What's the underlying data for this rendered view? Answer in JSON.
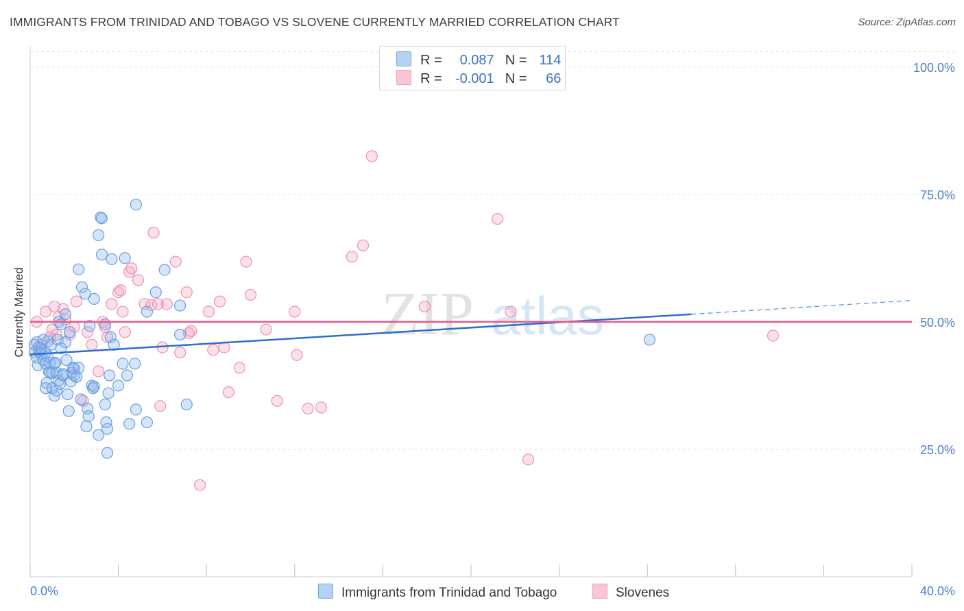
{
  "title": "IMMIGRANTS FROM TRINIDAD AND TOBAGO VS SLOVENE CURRENTLY MARRIED CORRELATION CHART",
  "source": "Source: ZipAtlas.com",
  "watermark": {
    "zip": "ZIP",
    "atlas": "atlas"
  },
  "legend": {
    "rows": [
      {
        "r_label": "R =",
        "r_value": "0.087",
        "n_label": "N =",
        "n_value": "114",
        "color": "#a9c8f0"
      },
      {
        "r_label": "R =",
        "r_value": "-0.001",
        "n_label": "N =",
        "n_value": "66",
        "color": "#f5b8cb"
      }
    ]
  },
  "bottom_legend": {
    "series1": "Immigrants from Trinidad and Tobago",
    "series2": "Slovenes"
  },
  "colors": {
    "blue_fill": "rgba(140,180,235,0.35)",
    "blue_stroke": "#6a9ee0",
    "blue_line": "#2a6fce",
    "pink_fill": "rgba(245,170,195,0.35)",
    "pink_stroke": "#ee90b0",
    "pink_line": "#e8588c",
    "axis_text": "#4a80c8"
  },
  "chart_data": {
    "type": "scatter",
    "title": "IMMIGRANTS FROM TRINIDAD AND TOBAGO VS SLOVENE CURRENTLY MARRIED CORRELATION CHART",
    "ylabel": "Currently Married",
    "xlabel": "",
    "xlim": [
      0,
      40
    ],
    "ylim": [
      0,
      104
    ],
    "x_tick_labels": [
      "0.0%",
      "40.0%"
    ],
    "y_ticks": [
      25,
      50,
      75,
      100
    ],
    "y_tick_labels": [
      "25.0%",
      "50.0%",
      "75.0%",
      "100.0%"
    ],
    "grid": "horizontal dashed",
    "legend_position": "top-center",
    "series": [
      {
        "name": "Immigrants from Trinidad and Tobago",
        "trend": {
          "x": [
            0,
            30
          ],
          "y": [
            43.6,
            51.5
          ],
          "extended_to": [
            40,
            54.2
          ]
        },
        "points": [
          [
            0.2,
            45.5
          ],
          [
            0.2,
            44.0
          ],
          [
            0.3,
            46.0
          ],
          [
            0.3,
            43.0
          ],
          [
            0.35,
            41.5
          ],
          [
            0.4,
            45.0
          ],
          [
            0.4,
            44.2
          ],
          [
            0.5,
            44.8
          ],
          [
            0.5,
            43.8
          ],
          [
            0.6,
            46.5
          ],
          [
            0.6,
            42.5
          ],
          [
            0.7,
            44.0
          ],
          [
            0.7,
            41.8
          ],
          [
            0.7,
            37.0
          ],
          [
            0.75,
            38.0
          ],
          [
            0.8,
            46.2
          ],
          [
            0.8,
            43.2
          ],
          [
            0.85,
            40.2
          ],
          [
            0.9,
            40.0
          ],
          [
            0.9,
            42.0
          ],
          [
            0.95,
            45.5
          ],
          [
            1.0,
            40.0
          ],
          [
            1.0,
            37.0
          ],
          [
            1.1,
            41.8
          ],
          [
            1.1,
            35.5
          ],
          [
            1.15,
            42.0
          ],
          [
            1.2,
            40.0
          ],
          [
            1.2,
            36.5
          ],
          [
            1.25,
            46.5
          ],
          [
            1.3,
            38.5
          ],
          [
            1.3,
            50.0
          ],
          [
            1.35,
            37.8
          ],
          [
            1.4,
            49.5
          ],
          [
            1.4,
            44.8
          ],
          [
            1.5,
            39.8
          ],
          [
            1.5,
            39.5
          ],
          [
            1.6,
            51.5
          ],
          [
            1.6,
            46.0
          ],
          [
            1.65,
            42.5
          ],
          [
            1.7,
            35.8
          ],
          [
            1.75,
            32.5
          ],
          [
            1.8,
            48.0
          ],
          [
            1.85,
            38.3
          ],
          [
            1.9,
            40.0
          ],
          [
            1.95,
            41.0
          ],
          [
            2.0,
            39.5
          ],
          [
            2.0,
            40.8
          ],
          [
            2.1,
            39.2
          ],
          [
            2.2,
            41.0
          ],
          [
            2.2,
            60.3
          ],
          [
            2.3,
            34.8
          ],
          [
            2.35,
            56.8
          ],
          [
            2.5,
            55.5
          ],
          [
            2.55,
            29.5
          ],
          [
            2.6,
            33.0
          ],
          [
            2.65,
            31.5
          ],
          [
            2.7,
            49.2
          ],
          [
            2.8,
            37.5
          ],
          [
            2.85,
            37.0
          ],
          [
            2.9,
            37.3
          ],
          [
            2.9,
            54.5
          ],
          [
            3.1,
            27.8
          ],
          [
            3.1,
            67.0
          ],
          [
            3.2,
            70.5
          ],
          [
            3.25,
            70.3
          ],
          [
            3.25,
            63.2
          ],
          [
            3.4,
            33.8
          ],
          [
            3.4,
            49.5
          ],
          [
            3.45,
            30.3
          ],
          [
            3.5,
            29.0
          ],
          [
            3.5,
            24.3
          ],
          [
            3.55,
            36.0
          ],
          [
            3.6,
            39.5
          ],
          [
            3.65,
            47.0
          ],
          [
            3.7,
            62.3
          ],
          [
            3.8,
            45.5
          ],
          [
            4.0,
            37.5
          ],
          [
            4.2,
            41.8
          ],
          [
            4.3,
            62.5
          ],
          [
            4.4,
            39.5
          ],
          [
            4.5,
            30.0
          ],
          [
            4.75,
            41.8
          ],
          [
            4.8,
            32.8
          ],
          [
            4.8,
            73.0
          ],
          [
            5.3,
            30.3
          ],
          [
            5.3,
            52.0
          ],
          [
            5.7,
            55.8
          ],
          [
            6.1,
            60.2
          ],
          [
            6.8,
            53.2
          ],
          [
            6.8,
            47.5
          ],
          [
            7.1,
            33.8
          ],
          [
            28.1,
            46.5
          ]
        ]
      },
      {
        "name": "Slovenes",
        "trend": {
          "x": [
            0,
            40
          ],
          "y": [
            50.0,
            50.0
          ]
        },
        "points": [
          [
            0.3,
            50.0
          ],
          [
            0.5,
            45.5
          ],
          [
            0.7,
            52.0
          ],
          [
            0.9,
            47.0
          ],
          [
            1.0,
            48.5
          ],
          [
            1.1,
            53.0
          ],
          [
            1.2,
            47.5
          ],
          [
            1.3,
            51.0
          ],
          [
            1.5,
            52.5
          ],
          [
            1.6,
            50.5
          ],
          [
            1.8,
            47.5
          ],
          [
            2.0,
            49.0
          ],
          [
            2.1,
            54.0
          ],
          [
            2.4,
            34.5
          ],
          [
            2.6,
            48.0
          ],
          [
            2.8,
            45.5
          ],
          [
            3.1,
            40.3
          ],
          [
            3.3,
            50.0
          ],
          [
            3.4,
            49.0
          ],
          [
            3.5,
            47.0
          ],
          [
            3.7,
            53.5
          ],
          [
            4.0,
            55.8
          ],
          [
            4.1,
            56.2
          ],
          [
            4.2,
            52.0
          ],
          [
            4.3,
            48.0
          ],
          [
            4.5,
            59.8
          ],
          [
            4.6,
            60.5
          ],
          [
            4.9,
            58.2
          ],
          [
            5.2,
            53.5
          ],
          [
            5.5,
            53.3
          ],
          [
            5.6,
            67.5
          ],
          [
            5.8,
            53.5
          ],
          [
            5.9,
            33.5
          ],
          [
            6.0,
            45.0
          ],
          [
            6.2,
            53.5
          ],
          [
            6.6,
            61.8
          ],
          [
            6.8,
            44.0
          ],
          [
            7.1,
            55.8
          ],
          [
            7.2,
            47.8
          ],
          [
            7.3,
            48.2
          ],
          [
            7.7,
            18.0
          ],
          [
            8.1,
            52.0
          ],
          [
            8.3,
            44.5
          ],
          [
            8.6,
            54.0
          ],
          [
            8.8,
            45.0
          ],
          [
            9.0,
            36.2
          ],
          [
            9.5,
            41.0
          ],
          [
            9.8,
            61.8
          ],
          [
            10.0,
            55.3
          ],
          [
            10.7,
            48.5
          ],
          [
            11.2,
            34.5
          ],
          [
            12.0,
            52.0
          ],
          [
            12.1,
            43.5
          ],
          [
            12.6,
            33.0
          ],
          [
            13.2,
            33.2
          ],
          [
            14.6,
            62.8
          ],
          [
            15.1,
            65.0
          ],
          [
            15.5,
            82.5
          ],
          [
            17.9,
            53.0
          ],
          [
            21.2,
            70.2
          ],
          [
            21.8,
            52.0
          ],
          [
            22.6,
            23.0
          ],
          [
            33.7,
            47.3
          ]
        ]
      }
    ]
  }
}
